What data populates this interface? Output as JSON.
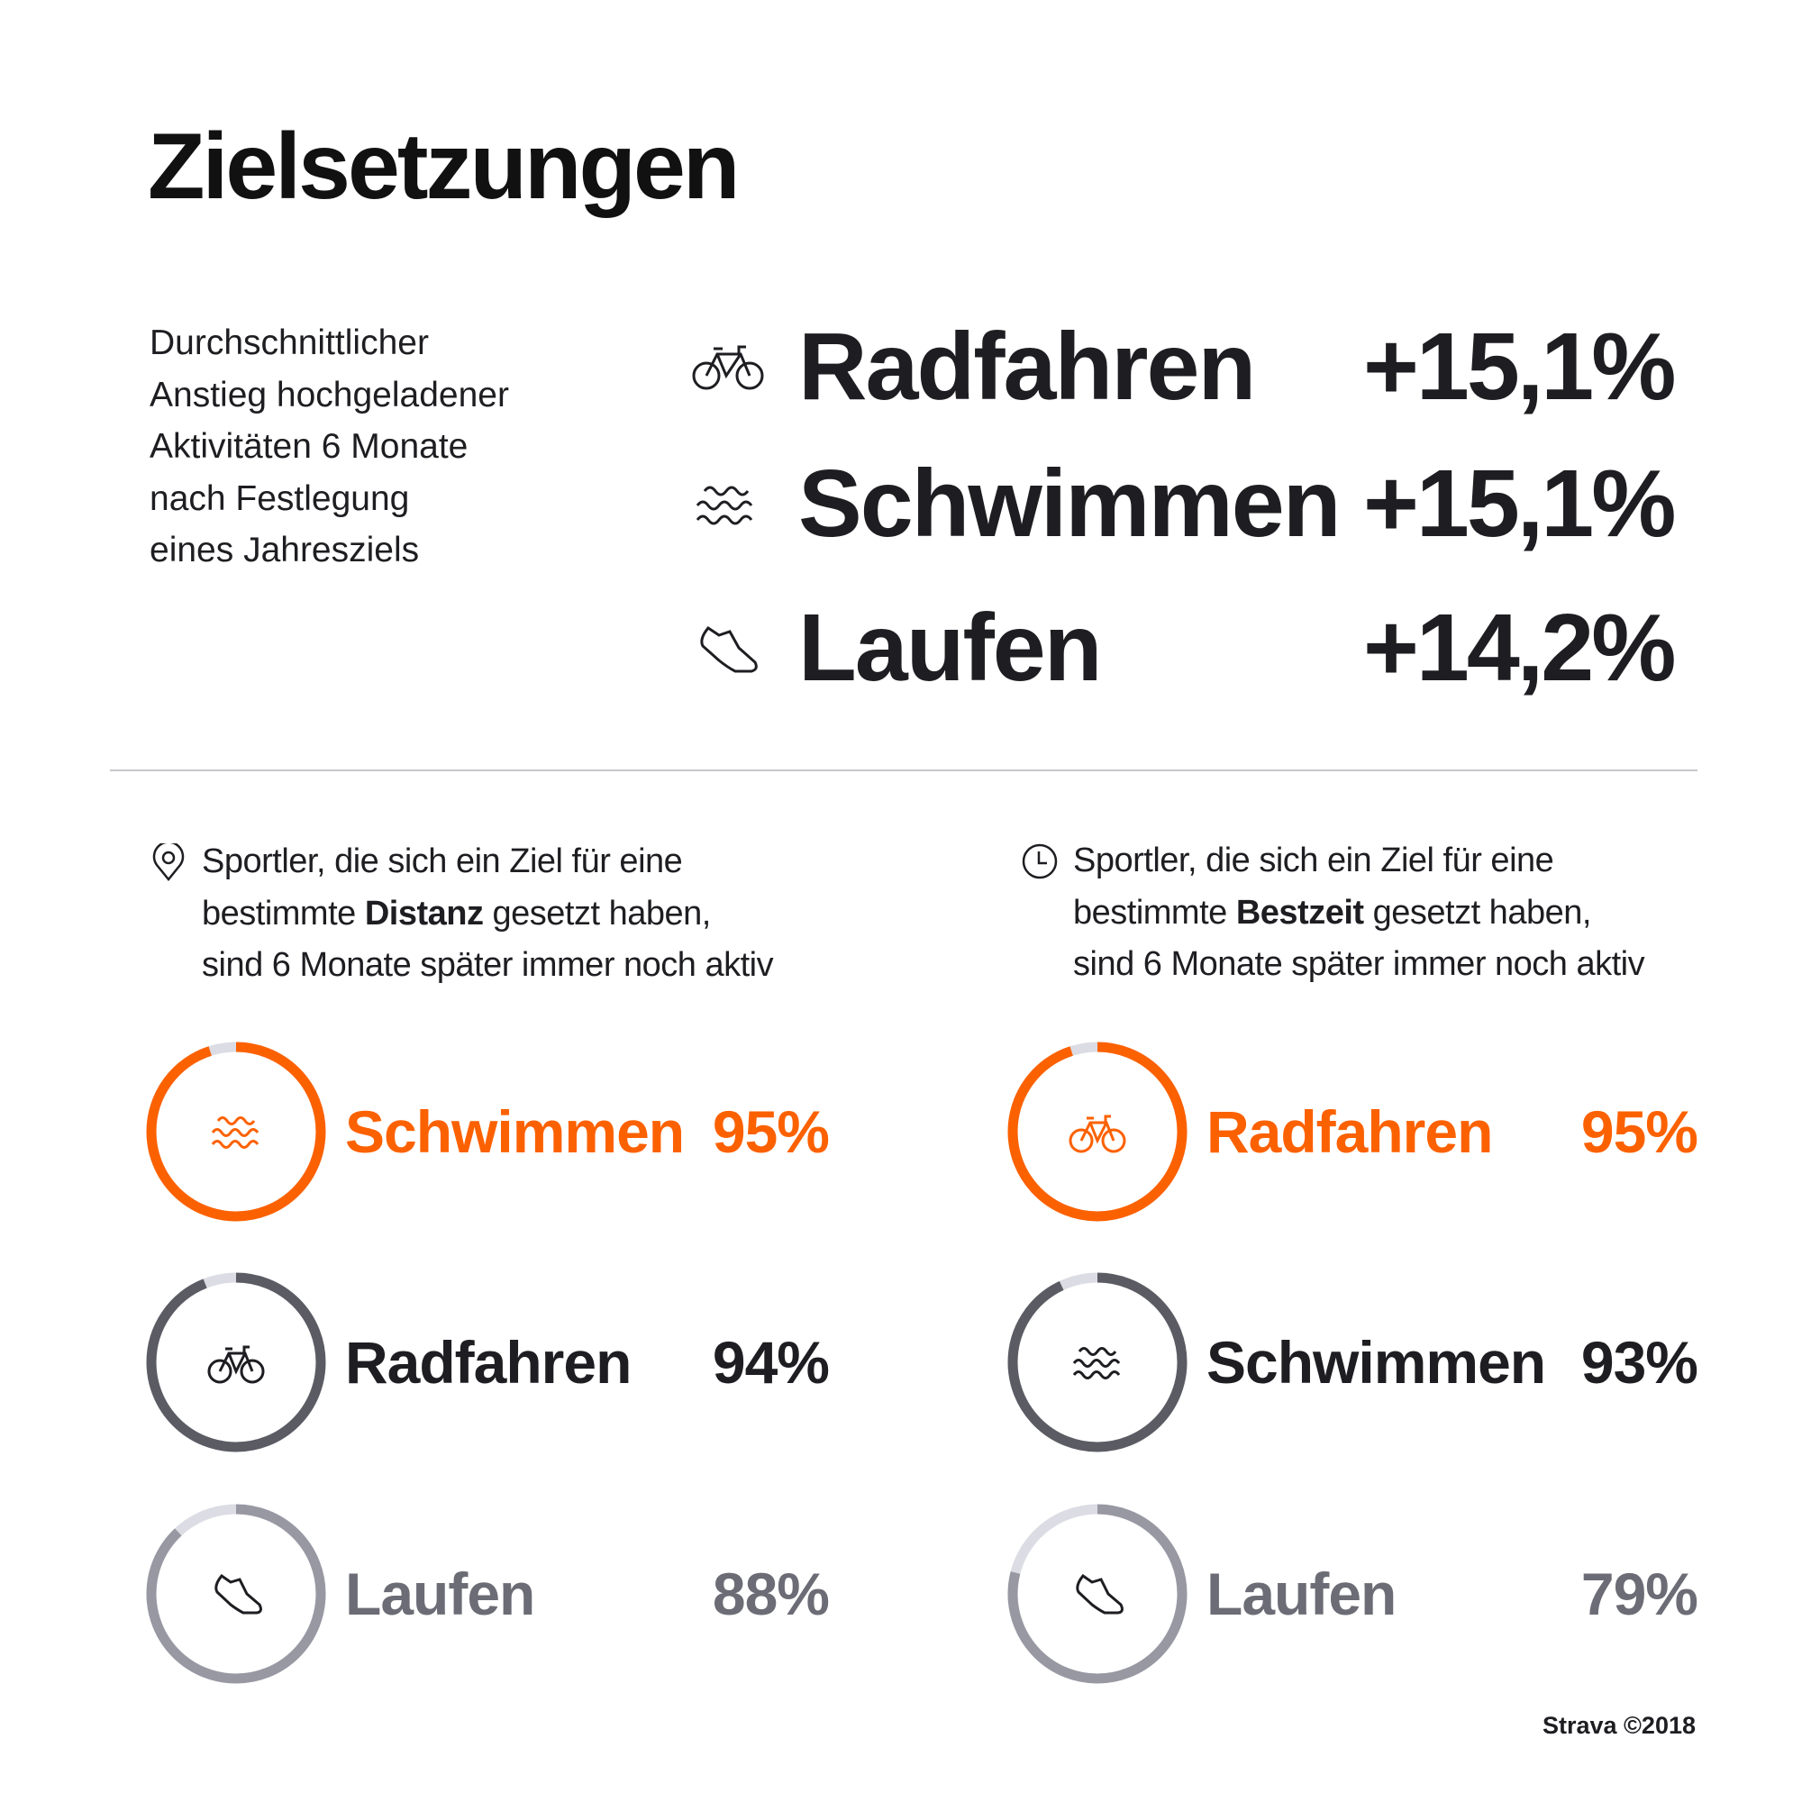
{
  "title": "Zielsetzungen",
  "intro": [
    "Durchschnittlicher",
    "Anstieg hochgeladener",
    "Aktivitäten 6 Monate",
    "nach Festlegung",
    "eines Jahresziels"
  ],
  "increase": [
    {
      "icon": "bicycle-icon",
      "label": "Radfahren",
      "value": "+15,1%"
    },
    {
      "icon": "waves-icon",
      "label": "Schwimmen",
      "value": "+15,1%"
    },
    {
      "icon": "shoe-icon",
      "label": "Laufen",
      "value": "+14,2%"
    }
  ],
  "distance": {
    "icon": "location-pin-icon",
    "line1": "Sportler, die sich ein Ziel für eine",
    "line2_pre": "bestimmte ",
    "line2_bold": "Distanz",
    "line2_post": " gesetzt haben,",
    "line3": "sind 6 Monate später immer noch aktiv",
    "items": [
      {
        "icon": "waves-icon",
        "label": "Schwimmen",
        "value": "95%",
        "percent": 95,
        "color": "#fc6100"
      },
      {
        "icon": "bicycle-icon",
        "label": "Radfahren",
        "value": "94%",
        "percent": 94,
        "color": "#5b5b63"
      },
      {
        "icon": "shoe-icon",
        "label": "Laufen",
        "value": "88%",
        "percent": 88,
        "color": "#9898a3"
      }
    ]
  },
  "besttime": {
    "icon": "clock-icon",
    "line1": "Sportler, die sich ein Ziel für eine",
    "line2_pre": "bestimmte ",
    "line2_bold": "Bestzeit",
    "line2_post": " gesetzt haben,",
    "line3": "sind 6 Monate später immer noch aktiv",
    "items": [
      {
        "icon": "bicycle-icon",
        "label": "Radfahren",
        "value": "95%",
        "percent": 95,
        "color": "#fc6100"
      },
      {
        "icon": "waves-icon",
        "label": "Schwimmen",
        "value": "93%",
        "percent": 93,
        "color": "#5b5b63"
      },
      {
        "icon": "shoe-icon",
        "label": "Laufen",
        "value": "79%",
        "percent": 79,
        "color": "#9898a3"
      }
    ]
  },
  "colors": {
    "accent": "#fc6100",
    "dark": "#1e1e22",
    "track": "#dcdce4",
    "muted_text": "#6c6c76"
  },
  "footer": "Strava ©2018"
}
